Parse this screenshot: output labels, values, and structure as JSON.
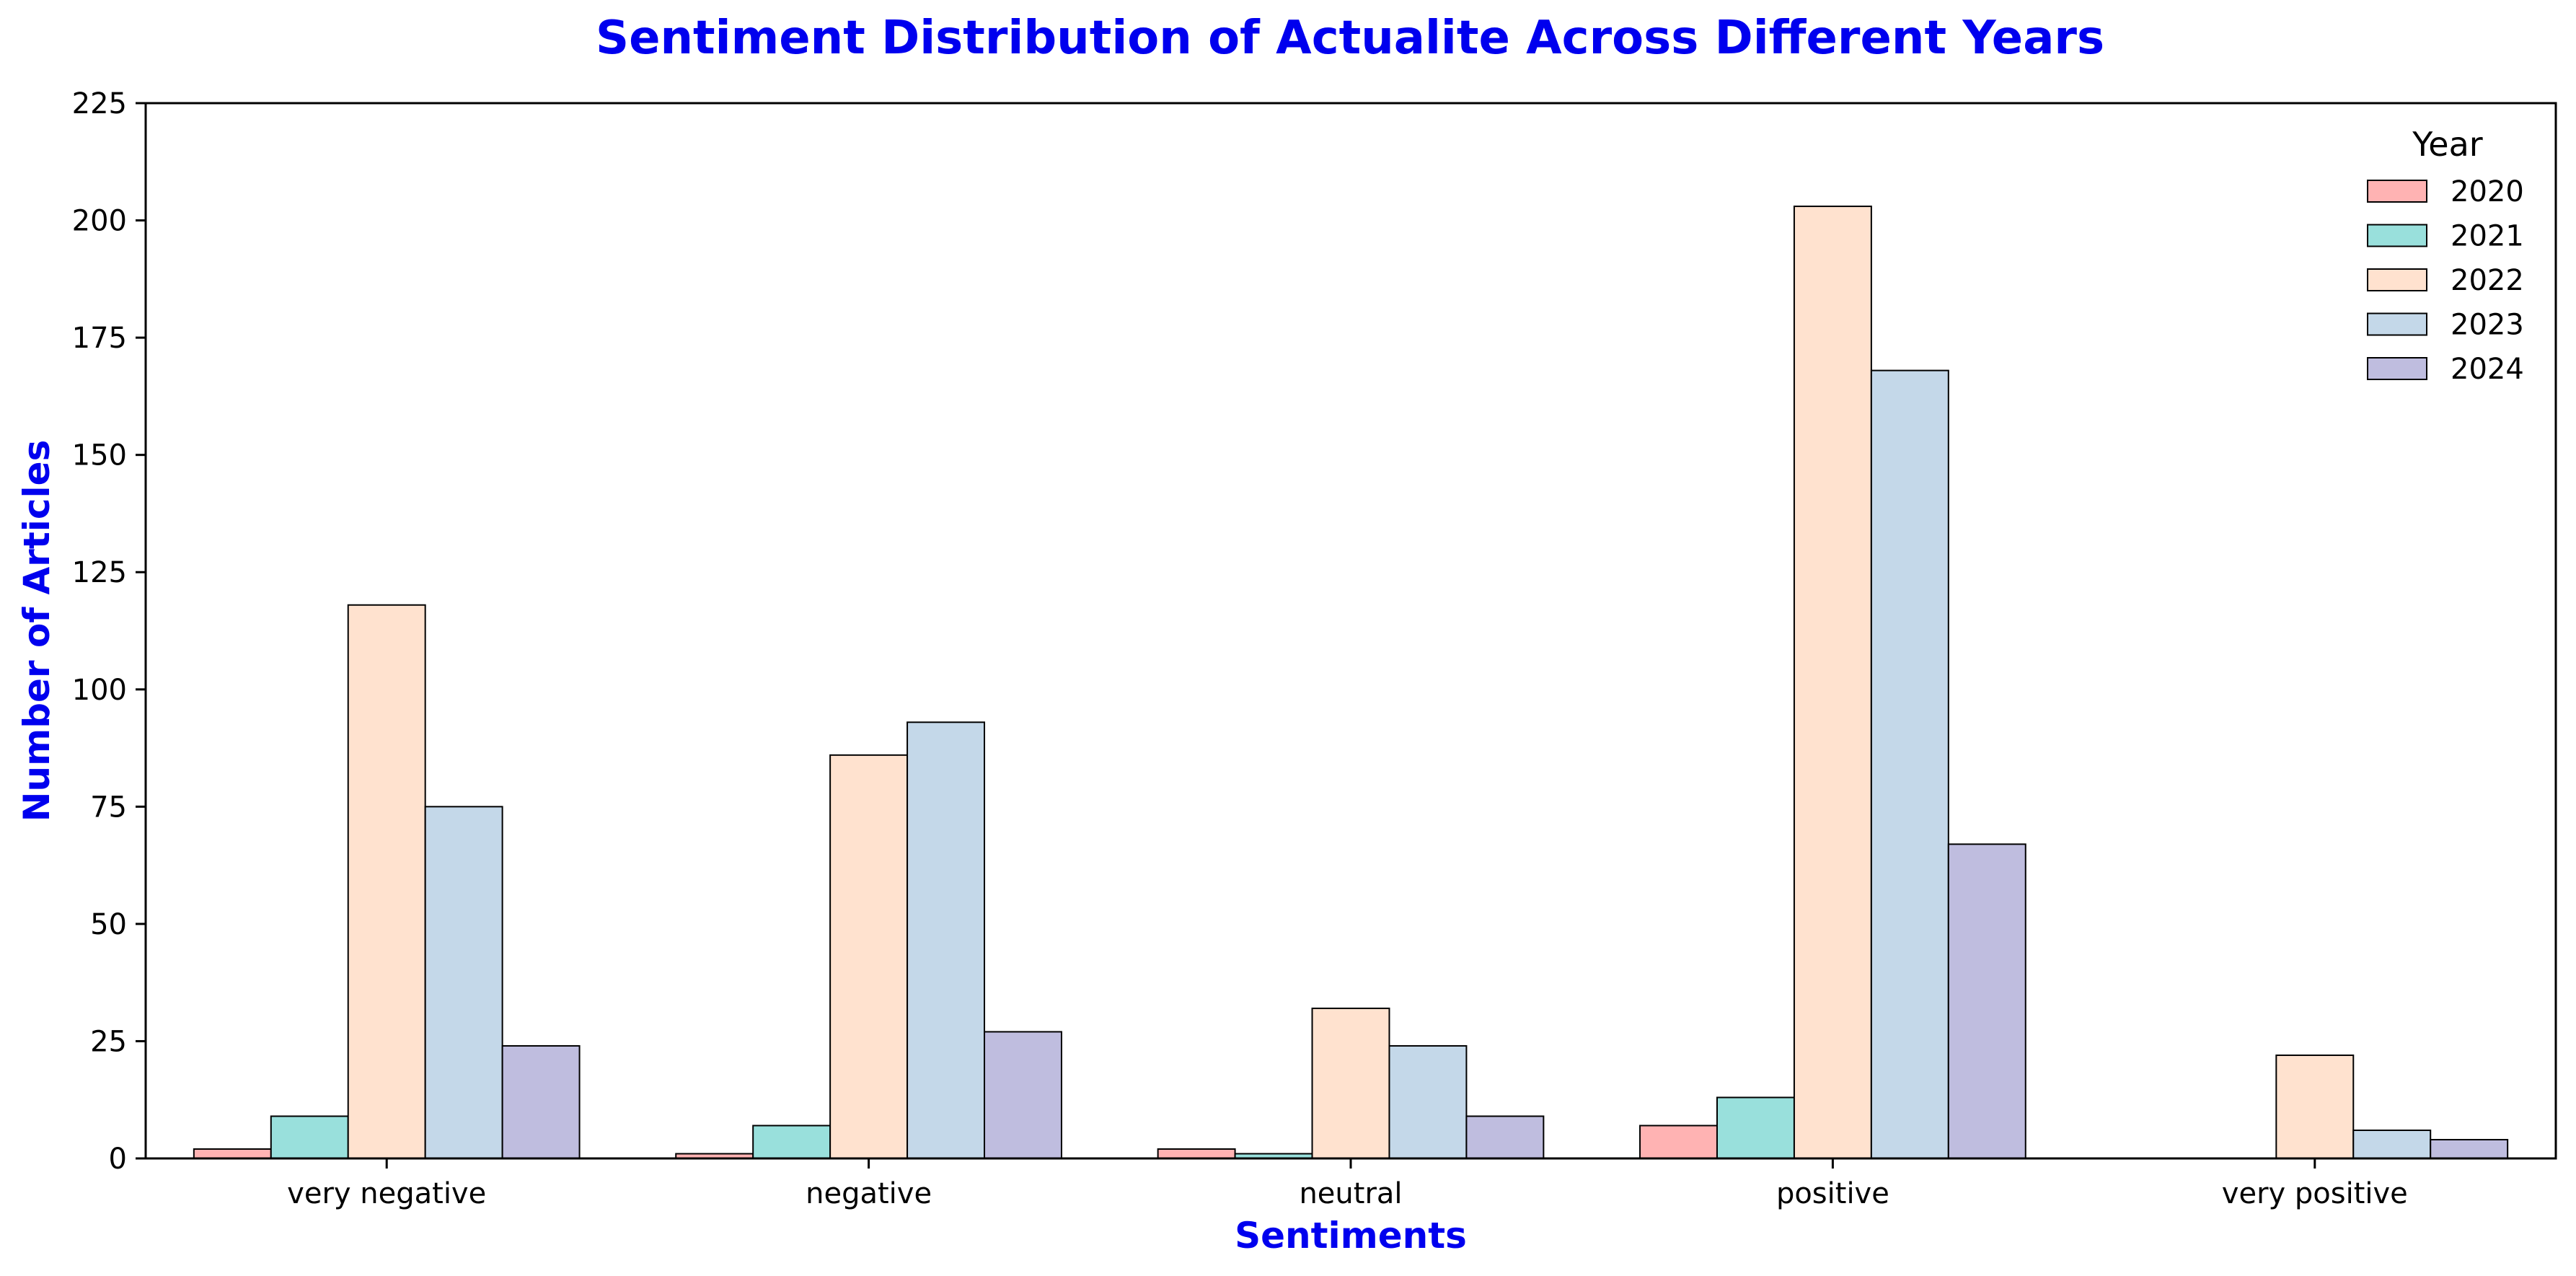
{
  "chart_data": {
    "type": "bar",
    "title": "Sentiment Distribution of Actualite Across Different Years",
    "xlabel": "Sentiments",
    "ylabel": "Number of Articles",
    "categories": [
      "very negative",
      "negative",
      "neutral",
      "positive",
      "very positive"
    ],
    "series": [
      {
        "name": "2020",
        "color": "#FFB3B3",
        "values": [
          2,
          1,
          2,
          7,
          0
        ]
      },
      {
        "name": "2021",
        "color": "#99E0DC",
        "values": [
          9,
          7,
          1,
          13,
          0
        ]
      },
      {
        "name": "2022",
        "color": "#FFE2CF",
        "values": [
          118,
          86,
          32,
          203,
          22
        ]
      },
      {
        "name": "2023",
        "color": "#C4D8E9",
        "values": [
          75,
          93,
          24,
          168,
          6
        ]
      },
      {
        "name": "2024",
        "color": "#BFBDDF",
        "values": [
          24,
          27,
          9,
          67,
          4
        ]
      }
    ],
    "ylim": [
      0,
      225
    ],
    "yticks": [
      "0",
      "25",
      "50",
      "75",
      "100",
      "125",
      "150",
      "175",
      "200",
      "225"
    ],
    "legend": {
      "title": "Year",
      "placement": "top-right"
    },
    "grid": false,
    "title_color": "#0000EE",
    "axis_label_color": "#0000EE"
  }
}
